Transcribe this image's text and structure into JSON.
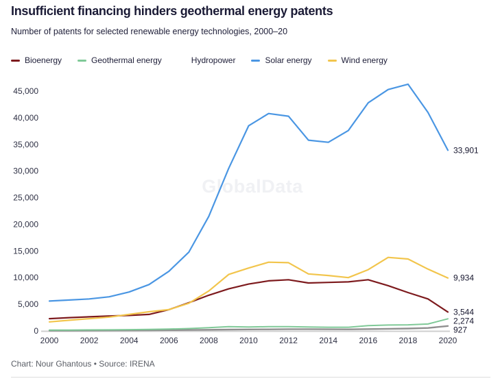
{
  "header": {
    "title": "Insufficient financing hinders geothermal energy patents",
    "subtitle": "Number of patents for selected renewable energy technologies, 2000–20"
  },
  "legend": [
    {
      "label": "Bioenergy",
      "swatch_color": "#7d1a1d"
    },
    {
      "label": "Geothermal energy",
      "swatch_color": "#7fc997"
    },
    {
      "label": "Hydropower",
      "swatch_color": "#ffffff"
    },
    {
      "label": "Solar energy",
      "swatch_color": "#4a96e3"
    },
    {
      "label": "Wind energy",
      "swatch_color": "#f2c54c"
    }
  ],
  "chart_data": {
    "type": "line",
    "title": "Insufficient financing hinders geothermal energy patents",
    "subtitle": "Number of patents for selected renewable energy technologies, 2000–20",
    "xlabel": "",
    "ylabel": "",
    "grid": false,
    "legend_position": "top",
    "watermark": "GlobalData",
    "x": [
      2000,
      2001,
      2002,
      2003,
      2004,
      2005,
      2006,
      2007,
      2008,
      2009,
      2010,
      2011,
      2012,
      2013,
      2014,
      2015,
      2016,
      2017,
      2018,
      2019,
      2020
    ],
    "xlim": [
      2000,
      2020
    ],
    "ylim": [
      0,
      45000
    ],
    "xtick_labels": [
      "2000",
      "2002",
      "2004",
      "2006",
      "2008",
      "2010",
      "2012",
      "2014",
      "2016",
      "2018",
      "2020"
    ],
    "xticks": [
      2000,
      2002,
      2004,
      2006,
      2008,
      2010,
      2012,
      2014,
      2016,
      2018,
      2020
    ],
    "yticks": [
      0,
      5000,
      10000,
      15000,
      20000,
      25000,
      30000,
      35000,
      40000,
      45000
    ],
    "ytick_labels": [
      "0",
      "5,000",
      "10,000",
      "15,000",
      "20,000",
      "25,000",
      "30,000",
      "35,000",
      "40,000",
      "45,000"
    ],
    "series": [
      {
        "name": "Bioenergy",
        "color": "#7d1a1d",
        "end_label": "3,544",
        "values": [
          2300,
          2500,
          2650,
          2800,
          2900,
          3100,
          4000,
          5300,
          6700,
          7900,
          8800,
          9400,
          9600,
          9000,
          9100,
          9200,
          9600,
          8500,
          7200,
          6000,
          3544
        ]
      },
      {
        "name": "Geothermal energy",
        "color": "#7fc997",
        "end_label": "2,274",
        "values": [
          150,
          170,
          190,
          210,
          240,
          280,
          350,
          450,
          600,
          800,
          750,
          800,
          800,
          750,
          700,
          700,
          1000,
          1100,
          1150,
          1300,
          2274
        ]
      },
      {
        "name": "Hydropower",
        "color": "#8f8f8f",
        "end_label": "927",
        "values": [
          60,
          70,
          80,
          90,
          100,
          120,
          150,
          180,
          220,
          260,
          280,
          300,
          330,
          330,
          310,
          300,
          350,
          400,
          450,
          550,
          927
        ]
      },
      {
        "name": "Solar energy",
        "color": "#4a96e3",
        "end_label": "33,901",
        "values": [
          5600,
          5800,
          6000,
          6400,
          7300,
          8700,
          11200,
          14800,
          21500,
          30500,
          38500,
          40800,
          40300,
          35800,
          35400,
          37600,
          42800,
          45300,
          46300,
          41000,
          33901
        ]
      },
      {
        "name": "Wind energy",
        "color": "#f2c54c",
        "end_label": "9,934",
        "values": [
          1700,
          2000,
          2300,
          2600,
          3100,
          3600,
          4000,
          5200,
          7500,
          10600,
          11800,
          12900,
          12800,
          10700,
          10400,
          10000,
          11500,
          13800,
          13500,
          11600,
          9934
        ]
      }
    ]
  },
  "footer": {
    "credit": "Chart: Nour Ghantous • Source: IRENA"
  }
}
